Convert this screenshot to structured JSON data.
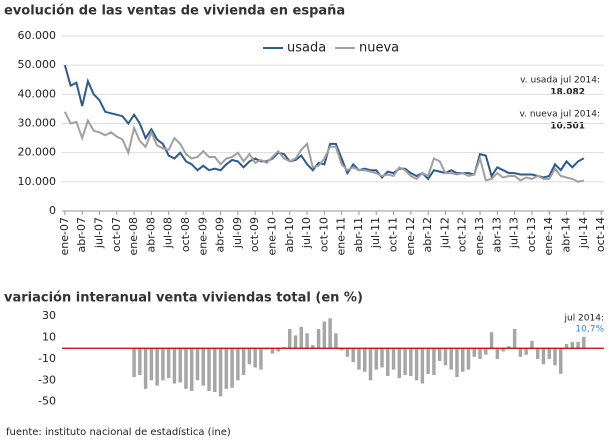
{
  "chart_data": [
    {
      "type": "line",
      "title": "evolución de las ventas de vivienda en españa",
      "categories": [
        "ene-07",
        null,
        null,
        "abr-07",
        null,
        null,
        "jul-07",
        null,
        null,
        "oct-07",
        null,
        null,
        "ene-08",
        null,
        null,
        "abr-08",
        null,
        null,
        "jul-08",
        null,
        null,
        "oct-08",
        null,
        null,
        "ene-09",
        null,
        null,
        "abr-09",
        null,
        null,
        "jul-09",
        null,
        null,
        "oct-09",
        null,
        null,
        "ene-10",
        null,
        null,
        "abr-10",
        null,
        null,
        "jul-10",
        null,
        null,
        "oct-10",
        null,
        null,
        "ene-11",
        null,
        null,
        "abr-11",
        null,
        null,
        "jul-11",
        null,
        null,
        "oct-11",
        null,
        null,
        "ene-12",
        null,
        null,
        "abr-12",
        null,
        null,
        "jul-12",
        null,
        null,
        "oct-12",
        null,
        null,
        "ene-13",
        null,
        null,
        "abr-13",
        null,
        null,
        "jul-13",
        null,
        null,
        "oct-13",
        null,
        null,
        "ene-14",
        null,
        null,
        "abr-14",
        null,
        null,
        "jul-14",
        null,
        null,
        "oct-14"
      ],
      "series": [
        {
          "name": "usada",
          "color": "#2e5a8e",
          "values": [
            50000,
            43000,
            44000,
            36000,
            44500,
            40000,
            38000,
            34000,
            33500,
            33000,
            32500,
            30000,
            33000,
            30000,
            25000,
            28000,
            24500,
            23000,
            19000,
            18000,
            20000,
            17000,
            16000,
            14000,
            15500,
            14000,
            14500,
            14000,
            16000,
            17500,
            17000,
            15000,
            17000,
            18000,
            17000,
            17000,
            18000,
            20000,
            19500,
            17000,
            17500,
            19000,
            16000,
            14000,
            16500,
            16000,
            23000,
            23000,
            18000,
            13000,
            16000,
            14000,
            14500,
            14000,
            14000,
            11500,
            13500,
            13000,
            14500,
            14500,
            13000,
            12000,
            13000,
            11000,
            14000,
            13500,
            13000,
            14000,
            13000,
            13000,
            13000,
            12500,
            19500,
            19000,
            12000,
            15000,
            14000,
            13000,
            13000,
            12500,
            12500,
            12500,
            12000,
            11500,
            12000,
            16000,
            14000,
            17000,
            15000,
            17000,
            18082,
            null,
            null,
            null
          ]
        },
        {
          "name": "nueva",
          "color": "#a0a0a0",
          "values": [
            34000,
            30000,
            30500,
            25000,
            31000,
            27500,
            27000,
            26000,
            27000,
            25500,
            24500,
            20000,
            28500,
            24000,
            22000,
            27000,
            22500,
            21500,
            21000,
            25000,
            23000,
            19500,
            18000,
            18500,
            20500,
            18500,
            18500,
            16000,
            18000,
            18500,
            20000,
            17000,
            19500,
            16500,
            17500,
            16500,
            18500,
            20500,
            18000,
            17000,
            18000,
            21000,
            23000,
            15000,
            15500,
            18000,
            22000,
            22000,
            16000,
            14000,
            15000,
            14000,
            14000,
            13500,
            13000,
            12000,
            12500,
            12000,
            15000,
            14000,
            12000,
            11000,
            13000,
            12000,
            18000,
            17000,
            13000,
            13000,
            12500,
            13000,
            12000,
            12500,
            18000,
            10500,
            11000,
            13000,
            11500,
            12000,
            12000,
            10500,
            11500,
            11000,
            12000,
            11000,
            11000,
            14500,
            12000,
            11500,
            11000,
            10000,
            10501,
            null,
            null,
            null
          ]
        }
      ],
      "ylim": [
        0,
        60000
      ],
      "yticks": [
        0,
        {
          "value": 10000,
          "label": "10.000"
        },
        {
          "value": 20000,
          "label": "20.000"
        },
        {
          "value": 30000,
          "label": "30.000"
        },
        {
          "value": 40000,
          "label": "40.000"
        },
        {
          "value": 50000,
          "label": "50.000"
        },
        {
          "value": 60000,
          "label": "60.000"
        }
      ],
      "grid": true,
      "legend": "top-center",
      "annotations": [
        "v. usada jul 2014:",
        "18.082",
        "v. nueva jul 2014:",
        "10.501"
      ]
    },
    {
      "type": "bar",
      "title": "variación interanual venta viviendas total (en %)",
      "color": "#a6a6a6",
      "values": [
        null,
        null,
        null,
        null,
        null,
        null,
        null,
        null,
        null,
        null,
        null,
        null,
        -27,
        -25,
        -38,
        -30,
        -35,
        -30,
        -28,
        -33,
        -32,
        -38,
        -40,
        -30,
        -35,
        -40,
        -41,
        -45,
        -38,
        -37,
        -30,
        -25,
        -15,
        -18,
        -20,
        -1,
        -5,
        -3,
        1,
        18,
        12,
        20,
        14,
        3,
        18,
        25,
        28,
        14,
        -2,
        -8,
        -13,
        -20,
        -22,
        -30,
        -20,
        -18,
        -26,
        -20,
        -28,
        -25,
        -26,
        -30,
        -33,
        -24,
        -25,
        -12,
        -16,
        -20,
        -27,
        -22,
        -20,
        -8,
        -10,
        -6,
        15,
        -10,
        -3,
        2,
        18,
        -8,
        -6,
        7,
        -10,
        -15,
        -10,
        -16,
        -24,
        4,
        6,
        6,
        10.7,
        null,
        null,
        null
      ],
      "ylim": [
        -55,
        33
      ],
      "yticks": [
        30,
        10,
        -10,
        -30,
        -50
      ],
      "grid": false,
      "reference_line": {
        "value": 0,
        "color": "#c00000"
      },
      "annotations": [
        "jul 2014:",
        "10,7%"
      ]
    }
  ],
  "source": "fuente: instituto nacional de estadística (ine)"
}
